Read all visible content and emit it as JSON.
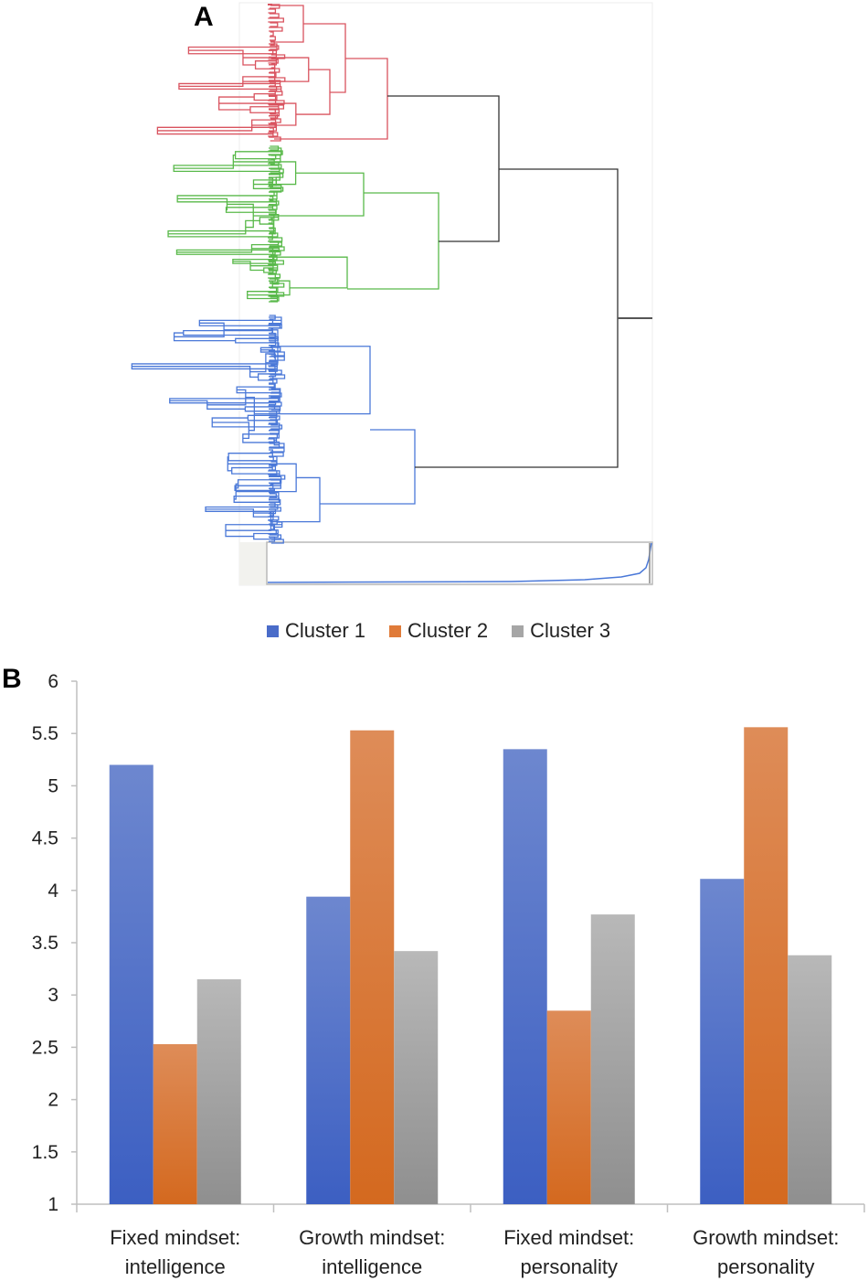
{
  "panels": {
    "a": "A",
    "b": "B"
  },
  "dendrogram": {
    "colors": {
      "cluster_red": "#d9535f",
      "cluster_green": "#59b94a",
      "cluster_blue": "#4a78d8",
      "link": "#333333"
    }
  },
  "legend": [
    {
      "label": "Cluster 1",
      "color": "#4a6cc9"
    },
    {
      "label": "Cluster 2",
      "color": "#e07b39"
    },
    {
      "label": "Cluster 3",
      "color": "#a6a6a6"
    }
  ],
  "chart_data": {
    "type": "bar",
    "categories": [
      [
        "Fixed mindset:",
        "intelligence"
      ],
      [
        "Growth mindset:",
        "intelligence"
      ],
      [
        "Fixed mindset:",
        "personality"
      ],
      [
        "Growth mindset:",
        "personality"
      ]
    ],
    "series": [
      {
        "name": "Cluster 1",
        "color": "#4a6cc9",
        "values": [
          5.2,
          3.94,
          5.35,
          4.11
        ]
      },
      {
        "name": "Cluster 2",
        "color": "#e07b39",
        "values": [
          2.53,
          5.53,
          2.85,
          5.56
        ]
      },
      {
        "name": "Cluster 3",
        "color": "#a6a6a6",
        "values": [
          3.15,
          3.42,
          3.77,
          3.38
        ]
      }
    ],
    "ylim": [
      1,
      6
    ],
    "yticks": [
      "1",
      "1.5",
      "2",
      "2.5",
      "3",
      "3.5",
      "4",
      "4.5",
      "5",
      "5.5",
      "6"
    ],
    "title": "",
    "xlabel": "",
    "ylabel": ""
  }
}
